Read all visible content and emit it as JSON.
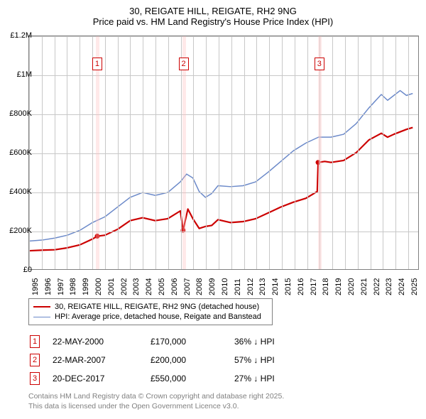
{
  "title_line1": "30, REIGATE HILL, REIGATE, RH2 9NG",
  "title_line2": "Price paid vs. HM Land Registry's House Price Index (HPI)",
  "chart": {
    "type": "line",
    "background_color": "#ffffff",
    "grid_color": "#c8c8c8",
    "border_color": "#808080",
    "ylim": [
      0,
      1200000
    ],
    "ytick_step": 200000,
    "ylabels": [
      "£0",
      "£200K",
      "£400K",
      "£600K",
      "£800K",
      "£1M",
      "£1.2M"
    ],
    "xlim": [
      1995,
      2025.9
    ],
    "xticks": [
      1995,
      1996,
      1997,
      1998,
      1999,
      2000,
      2001,
      2002,
      2003,
      2004,
      2005,
      2006,
      2007,
      2008,
      2009,
      2010,
      2011,
      2012,
      2013,
      2014,
      2015,
      2016,
      2017,
      2018,
      2019,
      2020,
      2021,
      2022,
      2023,
      2024,
      2025
    ],
    "series": [
      {
        "name": "price_paid",
        "label": "30, REIGATE HILL, REIGATE, RH2 9NG (detached house)",
        "color": "#cc0000",
        "line_width": 2.2,
        "points": [
          [
            1995.0,
            95000
          ],
          [
            1996.0,
            98000
          ],
          [
            1997.0,
            100000
          ],
          [
            1998.0,
            110000
          ],
          [
            1999.0,
            125000
          ],
          [
            2000.0,
            155000
          ],
          [
            2000.39,
            170000
          ],
          [
            2001.0,
            175000
          ],
          [
            2002.0,
            205000
          ],
          [
            2003.0,
            250000
          ],
          [
            2004.0,
            265000
          ],
          [
            2005.0,
            250000
          ],
          [
            2006.0,
            260000
          ],
          [
            2007.0,
            300000
          ],
          [
            2007.22,
            200000
          ],
          [
            2007.6,
            310000
          ],
          [
            2008.0,
            260000
          ],
          [
            2008.5,
            210000
          ],
          [
            2009.0,
            220000
          ],
          [
            2009.5,
            225000
          ],
          [
            2010.0,
            255000
          ],
          [
            2011.0,
            240000
          ],
          [
            2012.0,
            245000
          ],
          [
            2013.0,
            260000
          ],
          [
            2014.0,
            290000
          ],
          [
            2015.0,
            320000
          ],
          [
            2016.0,
            345000
          ],
          [
            2017.0,
            365000
          ],
          [
            2017.9,
            400000
          ],
          [
            2017.97,
            550000
          ],
          [
            2018.5,
            555000
          ],
          [
            2019.0,
            550000
          ],
          [
            2020.0,
            560000
          ],
          [
            2021.0,
            600000
          ],
          [
            2022.0,
            665000
          ],
          [
            2023.0,
            700000
          ],
          [
            2023.5,
            680000
          ],
          [
            2024.0,
            695000
          ],
          [
            2025.0,
            720000
          ],
          [
            2025.5,
            730000
          ]
        ],
        "markers": [
          {
            "x": 2000.39,
            "y": 170000
          },
          {
            "x": 2007.22,
            "y": 200000
          },
          {
            "x": 2017.97,
            "y": 550000
          }
        ]
      },
      {
        "name": "hpi",
        "label": "HPI: Average price, detached house, Reigate and Banstead",
        "color": "#6b89c9",
        "line_width": 1.5,
        "points": [
          [
            1995.0,
            145000
          ],
          [
            1996.0,
            150000
          ],
          [
            1997.0,
            160000
          ],
          [
            1998.0,
            175000
          ],
          [
            1999.0,
            200000
          ],
          [
            2000.0,
            240000
          ],
          [
            2001.0,
            270000
          ],
          [
            2002.0,
            320000
          ],
          [
            2003.0,
            370000
          ],
          [
            2004.0,
            395000
          ],
          [
            2005.0,
            380000
          ],
          [
            2006.0,
            395000
          ],
          [
            2007.0,
            450000
          ],
          [
            2007.5,
            490000
          ],
          [
            2008.0,
            470000
          ],
          [
            2008.5,
            400000
          ],
          [
            2009.0,
            370000
          ],
          [
            2009.5,
            390000
          ],
          [
            2010.0,
            430000
          ],
          [
            2011.0,
            425000
          ],
          [
            2012.0,
            430000
          ],
          [
            2013.0,
            450000
          ],
          [
            2014.0,
            500000
          ],
          [
            2015.0,
            555000
          ],
          [
            2016.0,
            610000
          ],
          [
            2017.0,
            650000
          ],
          [
            2018.0,
            680000
          ],
          [
            2019.0,
            680000
          ],
          [
            2020.0,
            695000
          ],
          [
            2021.0,
            750000
          ],
          [
            2022.0,
            830000
          ],
          [
            2023.0,
            900000
          ],
          [
            2023.5,
            870000
          ],
          [
            2024.0,
            895000
          ],
          [
            2024.5,
            920000
          ],
          [
            2025.0,
            895000
          ],
          [
            2025.5,
            905000
          ]
        ]
      }
    ],
    "event_bands": [
      {
        "num": "1",
        "x": 2000.39,
        "width_years": 0.15
      },
      {
        "num": "2",
        "x": 2007.22,
        "width_years": 0.15
      },
      {
        "num": "3",
        "x": 2017.97,
        "width_years": 0.15
      }
    ],
    "marker_box_color": "#cc0000",
    "label_fontsize": 11
  },
  "legend": {
    "items": [
      {
        "color": "#cc0000",
        "width": 2.2,
        "label": "30, REIGATE HILL, REIGATE, RH2 9NG (detached house)"
      },
      {
        "color": "#6b89c9",
        "width": 1.5,
        "label": "HPI: Average price, detached house, Reigate and Banstead"
      }
    ]
  },
  "transactions": [
    {
      "num": "1",
      "date": "22-MAY-2000",
      "price": "£170,000",
      "pct": "36% ↓ HPI"
    },
    {
      "num": "2",
      "date": "22-MAR-2007",
      "price": "£200,000",
      "pct": "57% ↓ HPI"
    },
    {
      "num": "3",
      "date": "20-DEC-2017",
      "price": "£550,000",
      "pct": "27% ↓ HPI"
    }
  ],
  "footer_line1": "Contains HM Land Registry data © Crown copyright and database right 2025.",
  "footer_line2": "This data is licensed under the Open Government Licence v3.0."
}
